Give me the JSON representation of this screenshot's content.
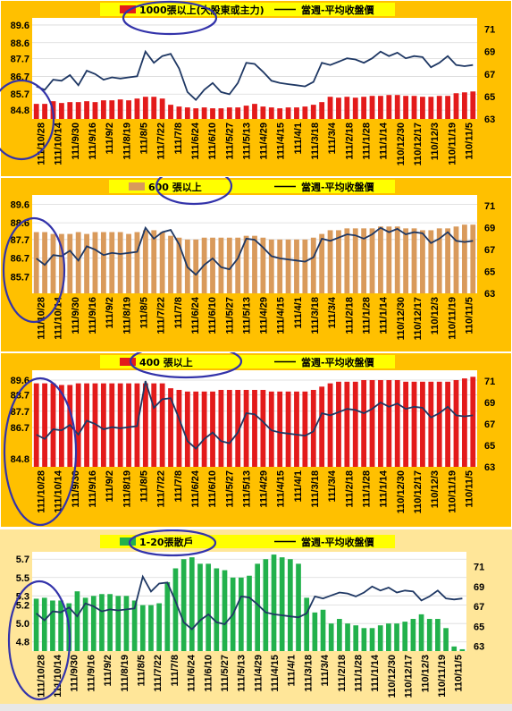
{
  "colors": {
    "panel_orange": "#FFC000",
    "panel_light": "#FFE699",
    "legend_box": "#FFFF00",
    "price_line": "#1F3864",
    "annotation_circle": "#3333AA"
  },
  "chart_data": [
    {
      "type": "bar",
      "title": "1000張以上(大股東或主力)",
      "line_label": "當週-平均收盤價",
      "bar_color": "#E31B1B",
      "left_ticks": [
        "84.8",
        "85.7",
        "86.7",
        "87.7",
        "88.6",
        "89.6"
      ],
      "right_ticks": [
        "63",
        "65",
        "67",
        "69",
        "71"
      ],
      "ylim_left": [
        84.3,
        90.0
      ],
      "ylim_right": [
        63,
        72
      ],
      "x_tick_labels": [
        "111/10/28",
        "111/10/14",
        "111/9/30",
        "111/9/16",
        "111/9/2",
        "111/8/19",
        "111/8/5",
        "111/7/22",
        "111/7/8",
        "111/6/24",
        "111/6/10",
        "111/5/27",
        "111/5/13",
        "111/4/29",
        "111/4/15",
        "111/4/1",
        "111/3/18",
        "111/3/4",
        "111/2/18",
        "111/1/28",
        "111/1/14",
        "110/12/30",
        "110/12/17",
        "110/12/3",
        "110/11/19",
        "110/11/5"
      ],
      "bars": [
        85.15,
        85.15,
        85.3,
        85.2,
        85.25,
        85.25,
        85.3,
        85.25,
        85.35,
        85.35,
        85.4,
        85.35,
        85.45,
        85.55,
        85.55,
        85.45,
        85.1,
        85.0,
        84.95,
        84.9,
        84.95,
        84.9,
        84.9,
        84.95,
        84.95,
        85.05,
        85.15,
        85.0,
        84.95,
        84.9,
        84.95,
        84.95,
        85.0,
        85.1,
        85.25,
        85.55,
        85.5,
        85.55,
        85.5,
        85.55,
        85.6,
        85.6,
        85.65,
        85.65,
        85.6,
        85.6,
        85.55,
        85.55,
        85.6,
        85.6,
        85.75,
        85.8,
        85.85
      ],
      "line": [
        65.9,
        65.6,
        66.5,
        66.4,
        66.9,
        66.0,
        67.3,
        67.0,
        66.5,
        66.7,
        66.6,
        66.7,
        66.8,
        69.0,
        68.0,
        68.6,
        68.8,
        67.5,
        65.4,
        64.7,
        65.6,
        66.2,
        65.4,
        65.2,
        66.2,
        68.0,
        67.9,
        67.2,
        66.4,
        66.2,
        66.1,
        66.0,
        65.9,
        66.3,
        68.0,
        67.8,
        68.1,
        68.4,
        68.3,
        68.0,
        68.4,
        69.0,
        68.6,
        68.9,
        68.4,
        68.6,
        68.5,
        67.6,
        68.0,
        68.6,
        67.8,
        67.7,
        67.8
      ]
    },
    {
      "type": "bar",
      "title": "600 張以上",
      "line_label": "當週-平均收盤價",
      "bar_color": "#D99A5B",
      "left_ticks": [
        "85.7",
        "86.7",
        "87.7",
        "88.6",
        "89.6"
      ],
      "right_ticks": [
        "63",
        "65",
        "67",
        "69",
        "71"
      ],
      "ylim_left": [
        84.8,
        90.1
      ],
      "ylim_right": [
        63,
        72
      ],
      "x_tick_labels": [
        "111/10/28",
        "111/10/14",
        "111/9/30",
        "111/9/16",
        "111/9/2",
        "111/8/19",
        "111/8/5",
        "111/7/22",
        "111/7/8",
        "111/6/24",
        "111/6/10",
        "111/5/27",
        "111/5/13",
        "111/4/29",
        "111/4/15",
        "111/4/1",
        "111/3/18",
        "111/3/4",
        "111/2/18",
        "111/1/28",
        "111/1/14",
        "110/12/30",
        "110/12/17",
        "110/12/3",
        "110/11/19",
        "110/11/5"
      ],
      "bars": [
        88.1,
        88.1,
        88.0,
        88.0,
        88.0,
        88.1,
        88.0,
        88.1,
        88.1,
        88.1,
        88.1,
        88.0,
        88.1,
        88.2,
        88.2,
        88.1,
        87.9,
        87.8,
        87.7,
        87.7,
        87.8,
        87.8,
        87.8,
        87.8,
        87.8,
        87.9,
        87.9,
        87.8,
        87.7,
        87.7,
        87.7,
        87.7,
        87.7,
        87.8,
        88.0,
        88.2,
        88.2,
        88.3,
        88.3,
        88.3,
        88.3,
        88.4,
        88.4,
        88.4,
        88.3,
        88.3,
        88.2,
        88.2,
        88.3,
        88.3,
        88.4,
        88.5,
        88.5
      ],
      "line": [
        66.2,
        65.6,
        66.5,
        66.4,
        66.9,
        66.0,
        67.3,
        67.0,
        66.5,
        66.7,
        66.6,
        66.7,
        66.8,
        69.0,
        68.0,
        68.6,
        68.8,
        67.5,
        65.4,
        64.7,
        65.6,
        66.2,
        65.4,
        65.2,
        66.2,
        68.0,
        67.9,
        67.2,
        66.4,
        66.2,
        66.1,
        66.0,
        65.9,
        66.3,
        68.0,
        67.8,
        68.1,
        68.4,
        68.3,
        68.0,
        68.4,
        69.0,
        68.6,
        68.9,
        68.4,
        68.6,
        68.5,
        67.6,
        68.0,
        68.6,
        67.8,
        67.7,
        67.8
      ]
    },
    {
      "type": "bar",
      "title": "400 張以上",
      "line_label": "當週-平均收盤價",
      "bar_color": "#E31B1B",
      "left_ticks": [
        "84.8",
        "86.7",
        "87.7",
        "88.7",
        "89.6"
      ],
      "right_ticks": [
        "63",
        "65",
        "67",
        "69",
        "71"
      ],
      "ylim_left": [
        84.3,
        90.2
      ],
      "ylim_right": [
        63,
        72
      ],
      "x_tick_labels": [
        "111/10/28",
        "111/10/14",
        "111/9/30",
        "111/9/16",
        "111/9/2",
        "111/8/19",
        "111/8/5",
        "111/7/22",
        "111/7/8",
        "111/6/24",
        "111/6/10",
        "111/5/27",
        "111/5/13",
        "111/4/29",
        "111/4/15",
        "111/4/1",
        "111/3/18",
        "111/3/4",
        "111/2/18",
        "111/1/28",
        "111/1/14",
        "110/12/30",
        "110/12/17",
        "110/12/3",
        "110/11/19",
        "110/11/5"
      ],
      "bars": [
        89.4,
        89.4,
        89.4,
        89.3,
        89.3,
        89.4,
        89.4,
        89.4,
        89.4,
        89.4,
        89.4,
        89.4,
        89.4,
        89.4,
        89.4,
        89.4,
        89.1,
        89.0,
        88.9,
        88.9,
        88.9,
        88.9,
        89.0,
        89.0,
        89.0,
        89.0,
        89.0,
        89.0,
        88.9,
        88.9,
        88.9,
        88.9,
        88.9,
        89.0,
        89.2,
        89.4,
        89.5,
        89.5,
        89.5,
        89.6,
        89.6,
        89.6,
        89.6,
        89.6,
        89.5,
        89.5,
        89.5,
        89.5,
        89.5,
        89.5,
        89.6,
        89.7,
        89.8
      ],
      "line": [
        66.0,
        65.6,
        66.5,
        66.4,
        66.9,
        66.0,
        67.3,
        67.0,
        66.5,
        66.7,
        66.6,
        66.7,
        66.8,
        71.0,
        68.5,
        69.3,
        69.4,
        67.5,
        65.4,
        64.7,
        65.6,
        66.2,
        65.4,
        65.2,
        66.2,
        68.0,
        67.9,
        67.2,
        66.4,
        66.2,
        66.1,
        66.0,
        65.9,
        66.3,
        68.0,
        67.8,
        68.1,
        68.4,
        68.3,
        68.0,
        68.4,
        69.0,
        68.6,
        68.9,
        68.4,
        68.6,
        68.5,
        67.6,
        68.0,
        68.6,
        67.8,
        67.7,
        67.8
      ]
    },
    {
      "type": "bar",
      "title": "1-20張散戶",
      "line_label": "當週-平均收盤價",
      "bar_color": "#22B14C",
      "left_ticks": [
        "4.8",
        "5.0",
        "5.2",
        "5.3",
        "5.5",
        "5.7"
      ],
      "right_ticks": [
        "63",
        "65",
        "67",
        "69",
        "71"
      ],
      "ylim_left": [
        4.7,
        5.78
      ],
      "ylim_right": [
        62.5,
        72.5
      ],
      "x_tick_labels": [
        "111/10/28",
        "111/10/14",
        "111/9/30",
        "111/9/16",
        "111/9/2",
        "111/8/19",
        "111/8/5",
        "111/7/22",
        "111/7/8",
        "111/6/24",
        "111/6/10",
        "111/5/27",
        "111/5/13",
        "111/4/29",
        "111/4/15",
        "111/4/1",
        "111/3/18",
        "111/3/4",
        "111/2/18",
        "111/1/28",
        "111/1/14",
        "110/12/30",
        "110/12/17",
        "110/12/3",
        "110/11/19",
        "110/11/5"
      ],
      "bars": [
        5.27,
        5.28,
        5.25,
        5.25,
        5.22,
        5.35,
        5.28,
        5.3,
        5.32,
        5.32,
        5.3,
        5.3,
        5.25,
        5.2,
        5.2,
        5.22,
        5.45,
        5.6,
        5.7,
        5.72,
        5.65,
        5.65,
        5.6,
        5.58,
        5.5,
        5.5,
        5.52,
        5.65,
        5.7,
        5.75,
        5.72,
        5.7,
        5.65,
        5.28,
        5.12,
        5.15,
        5.0,
        5.05,
        5.0,
        4.98,
        4.95,
        4.95,
        4.98,
        5.0,
        5.0,
        5.02,
        5.05,
        5.1,
        5.05,
        5.05,
        4.95,
        4.75,
        4.72
      ],
      "line": [
        66.3,
        65.6,
        66.5,
        66.4,
        66.9,
        66.0,
        67.3,
        67.0,
        66.5,
        66.7,
        66.6,
        66.7,
        66.8,
        70.0,
        68.5,
        69.3,
        69.4,
        67.5,
        65.4,
        64.7,
        65.6,
        66.2,
        65.4,
        65.2,
        66.2,
        68.0,
        67.9,
        67.2,
        66.4,
        66.2,
        66.1,
        66.0,
        65.9,
        66.3,
        68.0,
        67.8,
        68.1,
        68.4,
        68.3,
        68.0,
        68.4,
        69.0,
        68.6,
        68.9,
        68.4,
        68.6,
        68.5,
        67.6,
        68.0,
        68.6,
        67.8,
        67.7,
        67.8
      ]
    }
  ]
}
